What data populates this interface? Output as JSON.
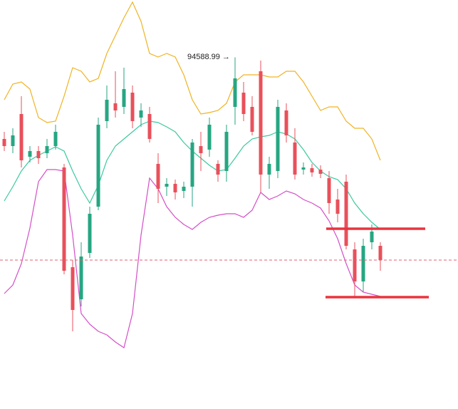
{
  "chart_data": {
    "type": "candlestick",
    "ylim": [
      84720,
      96200
    ],
    "up_color": "#26a682",
    "down_color": "#e8505b",
    "candles": {
      "open": [
        92300,
        92100,
        93000,
        91800,
        91960,
        91900,
        92100,
        91500,
        88700,
        87800,
        89100,
        90400,
        92800,
        93300,
        93200,
        93600,
        92900,
        93000,
        91600,
        90960,
        91040,
        90840,
        90960,
        92100,
        92000,
        91600,
        91400,
        93200,
        93600,
        93200,
        94200,
        91300,
        91400,
        93100,
        92200,
        91440,
        91480,
        91440,
        91200,
        90600,
        91100,
        89200,
        88300,
        89400,
        89300
      ],
      "close": [
        92100,
        92400,
        91700,
        91960,
        91760,
        92100,
        92500,
        88600,
        87500,
        89000,
        90200,
        92700,
        93400,
        93100,
        93700,
        92800,
        93100,
        92300,
        90900,
        91040,
        90800,
        90960,
        92200,
        91900,
        92700,
        91300,
        92500,
        94000,
        93000,
        92500,
        91300,
        91600,
        93200,
        92400,
        91300,
        91500,
        91360,
        91320,
        90500,
        90200,
        89300,
        88300,
        89300,
        89700,
        88900
      ],
      "high": [
        92500,
        92600,
        93500,
        92100,
        92100,
        92300,
        92700,
        91600,
        88900,
        89400,
        90400,
        92900,
        93800,
        94200,
        94300,
        93800,
        93300,
        93200,
        91900,
        91200,
        91160,
        91100,
        92300,
        92500,
        92900,
        91700,
        92700,
        94588.99,
        93900,
        93500,
        94500,
        91800,
        93400,
        93300,
        92600,
        91640,
        91600,
        91560,
        91400,
        90900,
        91300,
        89400,
        89500,
        89900,
        89400
      ],
      "low": [
        91960,
        91900,
        91500,
        91640,
        91600,
        91760,
        92000,
        88500,
        86900,
        87600,
        88960,
        90300,
        92600,
        92900,
        93000,
        92600,
        92640,
        92200,
        90500,
        90700,
        90600,
        90640,
        90400,
        91400,
        91800,
        91100,
        91100,
        92700,
        92800,
        92400,
        90800,
        90900,
        91200,
        92200,
        91160,
        91300,
        91240,
        91200,
        90200,
        89960,
        89200,
        87840,
        88000,
        89200,
        88600
      ]
    },
    "bands": [
      {
        "color": "#f0b323",
        "values": [
          93400,
          93840,
          93900,
          93700,
          92900,
          92760,
          92800,
          93500,
          94300,
          94200,
          93900,
          94000,
          94700,
          95200,
          95700,
          96140,
          95600,
          94700,
          94600,
          94700,
          94600,
          94100,
          93400,
          93000,
          93040,
          93100,
          93300,
          93900,
          94100,
          94100,
          94100,
          94040,
          94040,
          94200,
          94200,
          93900,
          93500,
          93100,
          93200,
          93200,
          92800,
          92600,
          92600,
          92300,
          91700
        ]
      },
      {
        "color": "#3cc9a0",
        "values": [
          90560,
          90960,
          91400,
          91700,
          91840,
          91960,
          92080,
          91960,
          91400,
          90900,
          90500,
          91000,
          91700,
          92100,
          92300,
          92500,
          92700,
          92800,
          92760,
          92640,
          92500,
          92200,
          91960,
          91760,
          91560,
          91400,
          91440,
          91760,
          92100,
          92300,
          92360,
          92400,
          92500,
          92440,
          92300,
          92000,
          91640,
          91400,
          91240,
          91160,
          90900,
          90500,
          90200,
          89960,
          89760
        ]
      },
      {
        "color": "#d44fc8",
        "values": [
          87960,
          88200,
          88800,
          89800,
          91100,
          91440,
          91440,
          91400,
          89600,
          87400,
          87100,
          86900,
          86800,
          86600,
          86440,
          87400,
          89600,
          91200,
          90900,
          90400,
          90100,
          89900,
          89760,
          89960,
          90100,
          90160,
          90200,
          90200,
          90100,
          90300,
          90800,
          90600,
          90700,
          90840,
          90760,
          90600,
          90500,
          90360,
          90000,
          89500,
          88800,
          88200,
          88000,
          87940,
          87880
        ]
      }
    ],
    "reference_line": {
      "value": 88900,
      "color": "#e06070"
    },
    "levels": [
      {
        "value": 89780,
        "color": "#e8343f"
      },
      {
        "value": 87860,
        "color": "#e8343f"
      }
    ],
    "annotation": "94588.99 →"
  }
}
